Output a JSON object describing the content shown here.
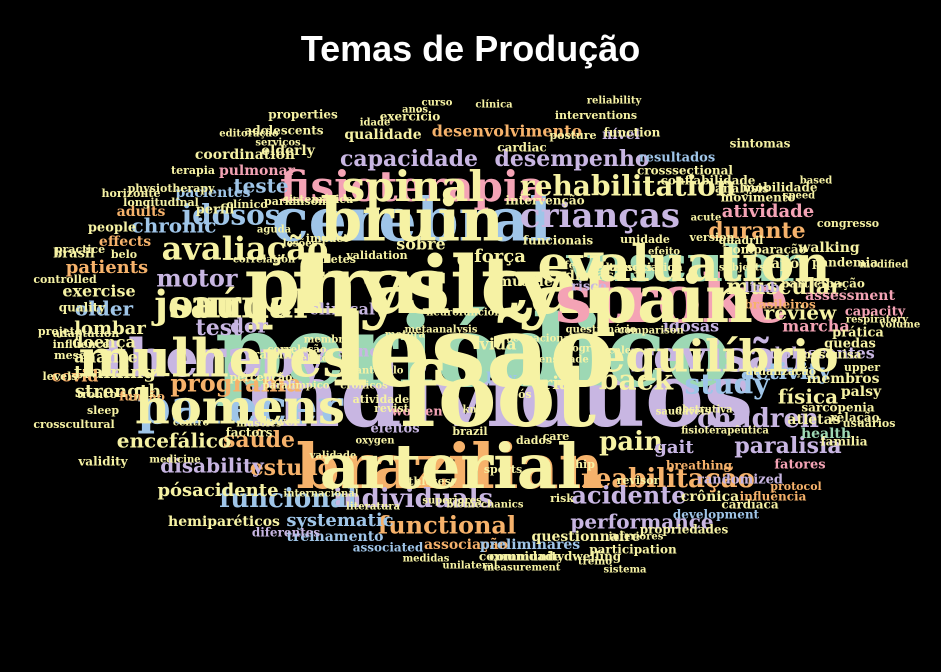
{
  "title": "Temas de Produção",
  "colors": {
    "green": "#9dd8b4",
    "yellow": "#f6f2a4",
    "orange": "#f6b26b",
    "purple": "#c8b6e2",
    "blue": "#9fc5e8",
    "pink": "#f4a3b5",
    "teal": "#8fd1c8"
  },
  "words": [
    {
      "text": "indivíduos",
      "color": "purple"
    },
    {
      "text": "periódico",
      "color": "green"
    },
    {
      "text": "physical",
      "color": "yellow"
    },
    {
      "text": "stroke",
      "color": "pink"
    },
    {
      "text": "brazilian",
      "color": "orange"
    },
    {
      "text": "cerebral",
      "color": "blue"
    },
    {
      "text": "vascular",
      "color": "green"
    },
    {
      "text": "therapy",
      "color": "purple"
    },
    {
      "text": "parecer",
      "color": "blue"
    },
    {
      "text": "revisão",
      "color": "purple"
    },
    {
      "text": "fisioterapia",
      "color": "pink"
    },
    {
      "text": "journal",
      "color": "yellow"
    },
    {
      "text": "crianças",
      "color": "purple"
    },
    {
      "text": "rehabilitation",
      "color": "yellow"
    },
    {
      "text": "reabilitação",
      "color": "orange"
    },
    {
      "text": "individuals",
      "color": "purple"
    },
    {
      "text": "avaliação",
      "color": "yellow"
    },
    {
      "text": "idosos",
      "color": "blue"
    },
    {
      "text": "study",
      "color": "blue"
    },
    {
      "text": "funcional",
      "color": "blue"
    },
    {
      "text": "functional",
      "color": "orange"
    },
    {
      "text": "acidente",
      "color": "purple"
    },
    {
      "text": "children",
      "color": "purple"
    },
    {
      "text": "programa",
      "color": "orange"
    },
    {
      "text": "desempenho",
      "color": "purple"
    },
    {
      "text": "capacidade",
      "color": "purple"
    },
    {
      "text": "muscular",
      "color": "yellow"
    },
    {
      "text": "durante",
      "color": "orange"
    },
    {
      "text": "saúde",
      "color": "orange"
    },
    {
      "text": "estudo",
      "color": "orange"
    },
    {
      "text": "encefálico",
      "color": "yellow"
    },
    {
      "text": "disability",
      "color": "purple"
    },
    {
      "text": "activity",
      "color": "blue"
    },
    {
      "text": "performance",
      "color": "purple"
    },
    {
      "text": "paralisia",
      "color": "purple"
    },
    {
      "text": "back",
      "color": "yellow"
    },
    {
      "text": "pain",
      "color": "yellow"
    },
    {
      "text": "motor",
      "color": "purple"
    },
    {
      "text": "chronic",
      "color": "blue"
    },
    {
      "text": "dor",
      "color": "purple"
    },
    {
      "text": "test",
      "color": "purple"
    },
    {
      "text": "teste",
      "color": "blue"
    },
    {
      "text": "patients",
      "color": "orange"
    },
    {
      "text": "older",
      "color": "blue"
    },
    {
      "text": "review",
      "color": "yellow"
    },
    {
      "text": "atividade",
      "color": "pink"
    },
    {
      "text": "física",
      "color": "yellow"
    },
    {
      "text": "adolescentes",
      "color": "purple"
    },
    {
      "text": "marcha",
      "color": "pink"
    },
    {
      "text": "systematic",
      "color": "blue"
    },
    {
      "text": "pósacidente",
      "color": "yellow"
    },
    {
      "text": "strength",
      "color": "yellow"
    },
    {
      "text": "training",
      "color": "yellow"
    },
    {
      "text": "exercise",
      "color": "yellow"
    },
    {
      "text": "lombar",
      "color": "yellow"
    },
    {
      "text": "análise",
      "color": "yellow"
    },
    {
      "text": "doença",
      "color": "yellow"
    },
    {
      "text": "covid",
      "color": "orange"
    },
    {
      "text": "força",
      "color": "yellow"
    },
    {
      "text": "sobre",
      "color": "yellow"
    },
    {
      "text": "clinical",
      "color": "purple"
    },
    {
      "text": "vida",
      "color": "yellow"
    },
    {
      "text": "sono",
      "color": "purple"
    },
    {
      "text": "low",
      "color": "blue"
    },
    {
      "text": "trial",
      "color": "yellow"
    },
    {
      "text": "gait",
      "color": "purple"
    },
    {
      "text": "idosas",
      "color": "purple"
    },
    {
      "text": "após",
      "color": "yellow"
    },
    {
      "text": "walking",
      "color": "yellow"
    },
    {
      "text": "assessment",
      "color": "pink"
    },
    {
      "text": "capacity",
      "color": "pink"
    },
    {
      "text": "limb",
      "color": "purple"
    },
    {
      "text": "atletas",
      "color": "yellow"
    },
    {
      "text": "membros",
      "color": "yellow"
    },
    {
      "text": "palsy",
      "color": "yellow"
    },
    {
      "text": "health",
      "color": "green"
    },
    {
      "text": "fatores",
      "color": "pink"
    },
    {
      "text": "crônica",
      "color": "yellow"
    },
    {
      "text": "randomized",
      "color": "purple"
    },
    {
      "text": "hemiparéticos",
      "color": "yellow"
    },
    {
      "text": "treinamento",
      "color": "blue"
    },
    {
      "text": "associação",
      "color": "orange"
    },
    {
      "text": "preliminares",
      "color": "blue"
    },
    {
      "text": "elderly",
      "color": "yellow"
    },
    {
      "text": "qualidade",
      "color": "yellow"
    },
    {
      "text": "desenvolvimento",
      "color": "orange"
    },
    {
      "text": "coordination",
      "color": "yellow"
    },
    {
      "text": "pulmonar",
      "color": "pink"
    },
    {
      "text": "pacientes",
      "color": "blue"
    },
    {
      "text": "adults",
      "color": "orange"
    },
    {
      "text": "effects",
      "color": "orange"
    },
    {
      "text": "resultados",
      "color": "blue"
    },
    {
      "text": "confiabilidade",
      "color": "yellow"
    },
    {
      "text": "questionnaire",
      "color": "yellow"
    },
    {
      "text": "women",
      "color": "pink"
    },
    {
      "text": "efeitos",
      "color": "purple"
    },
    {
      "text": "lower",
      "color": "yellow"
    },
    {
      "text": "factors",
      "color": "yellow"
    },
    {
      "text": "função",
      "color": "orange"
    },
    {
      "text": "quality",
      "color": "yellow"
    },
    {
      "text": "disease",
      "color": "yellow"
    },
    {
      "text": "muscle",
      "color": "yellow"
    },
    {
      "text": "risco",
      "color": "purple"
    },
    {
      "text": "prática",
      "color": "yellow"
    },
    {
      "text": "quedas",
      "color": "yellow"
    },
    {
      "text": "people",
      "color": "yellow"
    },
    {
      "text": "perfil",
      "color": "yellow"
    },
    {
      "text": "nível",
      "color": "purple"
    },
    {
      "text": "function",
      "color": "yellow"
    },
    {
      "text": "brasil",
      "color": "yellow"
    },
    {
      "text": "validity",
      "color": "yellow"
    },
    {
      "text": "associated",
      "color": "blue"
    },
    {
      "text": "diferentes",
      "color": "purple"
    },
    {
      "text": "comunidade",
      "color": "yellow"
    },
    {
      "text": "communitydwelling",
      "color": "yellow"
    },
    {
      "text": "development",
      "color": "blue"
    },
    {
      "text": "participation",
      "color": "yellow"
    },
    {
      "text": "propriedades",
      "color": "yellow"
    },
    {
      "text": "brasileiros",
      "color": "orange"
    },
    {
      "text": "pandemia",
      "color": "yellow"
    },
    {
      "text": "movimento",
      "color": "yellow"
    },
    {
      "text": "analysis",
      "color": "yellow"
    },
    {
      "text": "mobilidade",
      "color": "yellow"
    },
    {
      "text": "sarcopenia",
      "color": "yellow"
    },
    {
      "text": "pesquisa",
      "color": "yellow"
    },
    {
      "text": "relação",
      "color": "yellow"
    },
    {
      "text": "família",
      "color": "yellow"
    },
    {
      "text": "usuários",
      "color": "yellow"
    },
    {
      "text": "cardíaca",
      "color": "yellow"
    },
    {
      "text": "influência",
      "color": "orange"
    },
    {
      "text": "breathing",
      "color": "orange"
    },
    {
      "text": "trabalho",
      "color": "yellow"
    },
    {
      "text": "percepção",
      "color": "yellow"
    },
    {
      "text": "tronco",
      "color": "yellow"
    },
    {
      "text": "crosscultural",
      "color": "yellow"
    },
    {
      "text": "sleep",
      "color": "yellow"
    },
    {
      "text": "meses",
      "color": "yellow"
    },
    {
      "text": "levels",
      "color": "yellow"
    },
    {
      "text": "adaptation",
      "color": "yellow"
    },
    {
      "text": "influence",
      "color": "yellow"
    },
    {
      "text": "practice",
      "color": "yellow"
    },
    {
      "text": "projeto",
      "color": "yellow"
    },
    {
      "text": "controlled",
      "color": "yellow"
    },
    {
      "text": "longitudinal",
      "color": "yellow"
    },
    {
      "text": "physiotherapy",
      "color": "yellow"
    },
    {
      "text": "sistemática",
      "color": "yellow"
    },
    {
      "text": "intervenção",
      "color": "yellow"
    },
    {
      "text": "cardiac",
      "color": "yellow"
    },
    {
      "text": "exercício",
      "color": "yellow"
    },
    {
      "text": "properties",
      "color": "yellow"
    },
    {
      "text": "adolescents",
      "color": "yellow"
    },
    {
      "text": "terapia",
      "color": "yellow"
    },
    {
      "text": "crosssectional",
      "color": "yellow"
    },
    {
      "text": "funcionais",
      "color": "yellow"
    },
    {
      "text": "comparação",
      "color": "yellow"
    },
    {
      "text": "participação",
      "color": "yellow"
    },
    {
      "text": "atualização",
      "color": "yellow"
    },
    {
      "text": "upper",
      "color": "yellow"
    },
    {
      "text": "protocol",
      "color": "orange"
    },
    {
      "text": "sports",
      "color": "yellow"
    },
    {
      "text": "brazil",
      "color": "yellow"
    },
    {
      "text": "athletes",
      "color": "yellow"
    },
    {
      "text": "pós",
      "color": "yellow"
    },
    {
      "text": "knee",
      "color": "yellow"
    },
    {
      "text": "revista",
      "color": "yellow"
    },
    {
      "text": "atividades",
      "color": "yellow"
    },
    {
      "text": "dados",
      "color": "yellow"
    },
    {
      "text": "care",
      "color": "yellow"
    },
    {
      "text": "hip",
      "color": "yellow"
    },
    {
      "text": "revisor",
      "color": "yellow"
    },
    {
      "text": "risk",
      "color": "yellow"
    },
    {
      "text": "testes",
      "color": "yellow"
    },
    {
      "text": "doenças",
      "color": "yellow"
    },
    {
      "text": "association",
      "color": "yellow"
    },
    {
      "text": "parkinson",
      "color": "yellow"
    },
    {
      "text": "clínico",
      "color": "yellow"
    },
    {
      "text": "medicine",
      "color": "yellow"
    },
    {
      "text": "muscles",
      "color": "yellow"
    },
    {
      "text": "centro",
      "color": "yellow"
    },
    {
      "text": "belo",
      "color": "yellow"
    },
    {
      "text": "horizonte",
      "color": "yellow"
    },
    {
      "text": "impact",
      "color": "yellow"
    },
    {
      "text": "validation",
      "color": "yellow"
    },
    {
      "text": "diabetes",
      "color": "yellow"
    },
    {
      "text": "motora",
      "color": "yellow"
    },
    {
      "text": "ocupacional",
      "color": "yellow"
    },
    {
      "text": "intensidade",
      "color": "yellow"
    },
    {
      "text": "program",
      "color": "yellow"
    },
    {
      "text": "unidade",
      "color": "yellow"
    },
    {
      "text": "version",
      "color": "yellow"
    },
    {
      "text": "quadril",
      "color": "yellow"
    },
    {
      "text": "subjects",
      "color": "yellow"
    },
    {
      "text": "congresso",
      "color": "yellow"
    },
    {
      "text": "modified",
      "color": "yellow"
    },
    {
      "text": "volume",
      "color": "yellow"
    },
    {
      "text": "respiratory",
      "color": "yellow"
    },
    {
      "text": "sintomas",
      "color": "yellow"
    },
    {
      "text": "editoração",
      "color": "yellow"
    },
    {
      "text": "serviços",
      "color": "yellow"
    },
    {
      "text": "idade",
      "color": "yellow"
    },
    {
      "text": "anos",
      "color": "yellow"
    },
    {
      "text": "curso",
      "color": "yellow"
    },
    {
      "text": "clínica",
      "color": "yellow"
    },
    {
      "text": "posture",
      "color": "yellow"
    },
    {
      "text": "interventions",
      "color": "yellow"
    },
    {
      "text": "reliability",
      "color": "yellow"
    },
    {
      "text": "measurement",
      "color": "yellow"
    },
    {
      "text": "unilateral",
      "color": "yellow"
    },
    {
      "text": "medidas",
      "color": "yellow"
    },
    {
      "text": "treino",
      "color": "yellow"
    },
    {
      "text": "sistema",
      "color": "yellow"
    },
    {
      "text": "inferiores",
      "color": "yellow"
    },
    {
      "text": "superiores",
      "color": "yellow"
    },
    {
      "text": "biomechanics",
      "color": "yellow"
    },
    {
      "text": "literatura",
      "color": "yellow"
    },
    {
      "text": "internacional",
      "color": "yellow"
    },
    {
      "text": "validade",
      "color": "yellow"
    },
    {
      "text": "oxygen",
      "color": "yellow"
    },
    {
      "text": "crônicos",
      "color": "yellow"
    },
    {
      "text": "pantocelo",
      "color": "yellow"
    },
    {
      "text": "metaanalysis",
      "color": "yellow"
    },
    {
      "text": "neurofuncional",
      "color": "yellow"
    },
    {
      "text": "questionário",
      "color": "yellow"
    },
    {
      "text": "scale",
      "color": "yellow"
    },
    {
      "text": "comparison",
      "color": "yellow"
    },
    {
      "text": "fisioterapêutica",
      "color": "yellow"
    },
    {
      "text": "obstrutiva",
      "color": "yellow"
    },
    {
      "text": "saudáveis",
      "color": "yellow"
    },
    {
      "text": "paralímpico",
      "color": "yellow"
    },
    {
      "text": "relato",
      "color": "yellow"
    },
    {
      "text": "membro",
      "color": "yellow"
    },
    {
      "text": "correlação",
      "color": "yellow"
    },
    {
      "text": "correlation",
      "color": "yellow"
    },
    {
      "text": "aguda",
      "color": "yellow"
    },
    {
      "text": "lesões",
      "color": "yellow"
    },
    {
      "text": "life",
      "color": "yellow"
    },
    {
      "text": "efeito",
      "color": "yellow"
    },
    {
      "text": "acute",
      "color": "yellow"
    },
    {
      "text": "speed",
      "color": "yellow"
    },
    {
      "text": "based",
      "color": "yellow"
    },
    {
      "text": "foot",
      "color": "yellow"
    },
    {
      "text": "lesão",
      "color": "yellow"
    },
    {
      "text": "frailty",
      "color": "yellow"
    },
    {
      "text": "pain",
      "color": "yellow"
    },
    {
      "text": "arterial",
      "color": "yellow"
    },
    {
      "text": "bruin",
      "color": "yellow"
    },
    {
      "text": "evaluation",
      "color": "yellow"
    },
    {
      "text": "mulheres",
      "color": "yellow"
    },
    {
      "text": "homens",
      "color": "yellow"
    },
    {
      "text": "equilíbrio",
      "color": "yellow"
    },
    {
      "text": "spinal",
      "color": "yellow"
    },
    {
      "text": "saúde",
      "color": "yellow"
    }
  ]
}
